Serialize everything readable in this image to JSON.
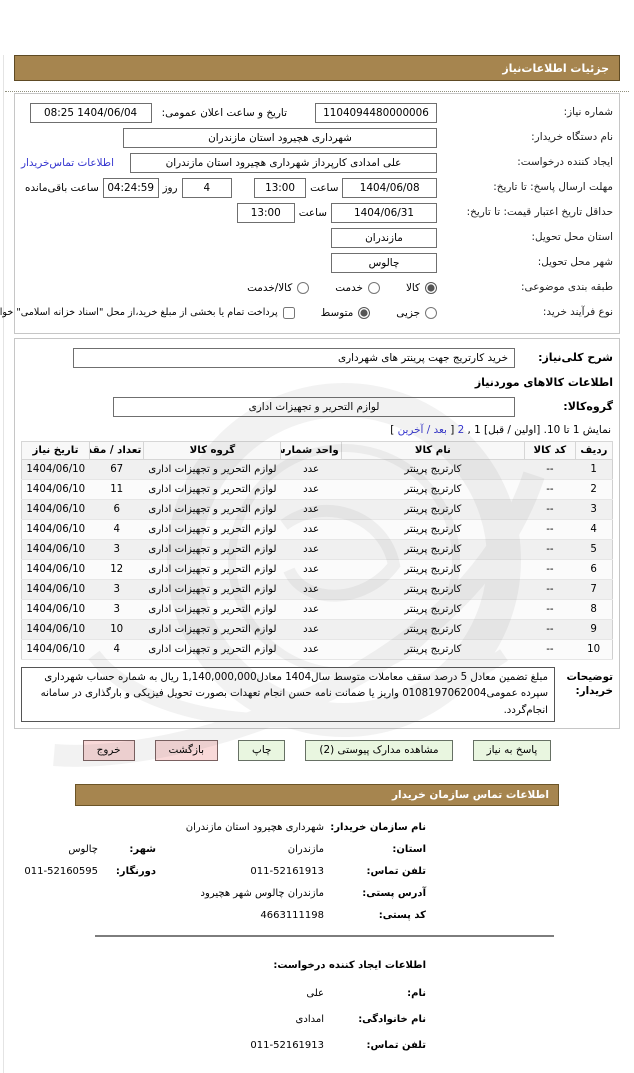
{
  "page": {
    "header_title": "جزئیات اطلاعات‌نیاز"
  },
  "accent_colors": {
    "bar_brown": "#a6854f",
    "button_green": "#e9f6e0",
    "button_pink": "#f9d9d9",
    "link_blue": "#3535cf"
  },
  "form": {
    "need_number_label": "شماره نیاز:",
    "need_number": "1104094480000006",
    "publish_datetime_label": "تاریخ و ساعت اعلان عمومی:",
    "publish_datetime": "1404/06/04 08:25",
    "buyer_org_label": "نام دستگاه خریدار:",
    "buyer_org": "شهرداری هچیرود استان مازندران",
    "creator_label": "ایجاد کننده درخواست:",
    "creator": "علی امدادی کارپرداز شهرداری هچیرود استان مازندران",
    "buyer_contact_link": "اطلاعات تماس‌خریدار",
    "reply_deadline_label": "مهلت ارسال پاسخ: تا تاریخ:",
    "reply_deadline_date": "1404/06/08",
    "hour_label": "ساعت",
    "reply_deadline_time": "13:00",
    "days_value": "4",
    "days_label": "روز",
    "remaining_time": "04:24:59",
    "remaining_label": "ساعت باقی‌مانده",
    "price_validity_label": "حداقل تاریخ اعتبار قیمت: تا تاریخ:",
    "price_validity_date": "1404/06/31",
    "price_validity_time": "13:00",
    "province_label": "استان محل تحویل:",
    "province": "مازندران",
    "city_label": "شهر محل تحویل:",
    "city": "چالوس",
    "subject_class": {
      "label": "طبقه بندی موضوعی:",
      "options": [
        {
          "label": "کالا",
          "checked": true
        },
        {
          "label": "خدمت",
          "checked": false
        },
        {
          "label": "کالا/خدمت",
          "checked": false
        }
      ]
    },
    "process_type": {
      "label": "نوع فرآیند خرید:",
      "options": [
        {
          "label": "جزیی",
          "checked": false
        },
        {
          "label": "متوسط",
          "checked": true
        }
      ],
      "treasury_checkbox": {
        "label": "پرداخت تمام یا بخشی از مبلغ خرید،از محل \"اسناد خزانه اسلامی\" خواهد بود.",
        "checked": false
      }
    }
  },
  "need": {
    "desc_label": "شرح کلی‌نیاز:",
    "desc": "خرید کارتریج جهت پرینتر های شهرداری",
    "items_heading": "اطلاعات کالاهای موردنیاز",
    "group_label": "گروه‌کالا:",
    "group": "لوازم التحریر و تجهیزات اداری"
  },
  "pagination": {
    "prefix": "نمایش 1 تا 10. [اولین / قبل] 1 ,",
    "page2_link": "2",
    "mid": " [",
    "next_last_link": "بعد / آخرین",
    "suffix": "]"
  },
  "items_table": {
    "headers": [
      "ردیف",
      "کد کالا",
      "نام کالا",
      "واحد شمارش",
      "گروه کالا",
      "تعداد / مقدار",
      "تاریخ نیاز"
    ],
    "rows": [
      [
        "1",
        "--",
        "کارتریج پرینتر",
        "عدد",
        "لوازم التحریر و تجهیزات اداری",
        "67",
        "1404/06/10"
      ],
      [
        "2",
        "--",
        "کارتریج پرینتر",
        "عدد",
        "لوازم التحریر و تجهیزات اداری",
        "11",
        "1404/06/10"
      ],
      [
        "3",
        "--",
        "کارتریج پرینتر",
        "عدد",
        "لوازم التحریر و تجهیزات اداری",
        "6",
        "1404/06/10"
      ],
      [
        "4",
        "--",
        "کارتریج پرینتر",
        "عدد",
        "لوازم التحریر و تجهیزات اداری",
        "4",
        "1404/06/10"
      ],
      [
        "5",
        "--",
        "کارتریج پرینتر",
        "عدد",
        "لوازم التحریر و تجهیزات اداری",
        "3",
        "1404/06/10"
      ],
      [
        "6",
        "--",
        "کارتریج پرینتر",
        "عدد",
        "لوازم التحریر و تجهیزات اداری",
        "12",
        "1404/06/10"
      ],
      [
        "7",
        "--",
        "کارتریج پرینتر",
        "عدد",
        "لوازم التحریر و تجهیزات اداری",
        "3",
        "1404/06/10"
      ],
      [
        "8",
        "--",
        "کارتریج پرینتر",
        "عدد",
        "لوازم التحریر و تجهیزات اداری",
        "3",
        "1404/06/10"
      ],
      [
        "9",
        "--",
        "کارتریج پرینتر",
        "عدد",
        "لوازم التحریر و تجهیزات اداری",
        "10",
        "1404/06/10"
      ],
      [
        "10",
        "--",
        "کارتریج پرینتر",
        "عدد",
        "لوازم التحریر و تجهیزات اداری",
        "4",
        "1404/06/10"
      ]
    ]
  },
  "buyer_note": {
    "label": "توضیحات خریدار:",
    "text": "مبلغ تضمین معادل 5 درصد سقف معاملات متوسط سال1404 معادل1,140,000,000 ریال به شماره حساب شهرداری سپرده عمومی0108197062004 واریز یا ضمانت نامه حسن انجام تعهدات بصورت تحویل فیزیکی و بارگذاری در سامانه انجام‌گردد."
  },
  "buttons": {
    "reply": "پاسخ به نیاز",
    "attachments": "مشاهده مدارک پیوستی (2)",
    "print": "چاپ",
    "back": "بازگشت",
    "exit": "خروج"
  },
  "contact": {
    "heading": "اطلاعات تماس سازمان خریدار",
    "org_label": "نام سازمان خریدار:",
    "org": "شهرداری هچیرود استان مازندران",
    "province_label": "استان:",
    "province": "مازندران",
    "city_label": "شهر:",
    "city": "چالوس",
    "phone_label": "تلفن تماس:",
    "phone": "011-52161913",
    "fax_label": "دورنگار:",
    "fax": "011-52160595",
    "address_label": "آدرس پستی:",
    "address": "مازندران چالوس شهر هچیرود",
    "postal_label": "کد پستی:",
    "postal_code": "4663111198"
  },
  "creator_info": {
    "heading": "اطلاعات ایجاد کننده درخواست:",
    "first_name_label": "نام:",
    "first_name": "علی",
    "last_name_label": "نام خانوادگی:",
    "last_name": "امدادی",
    "phone_label": "تلفن تماس:",
    "phone": "011-52161913"
  }
}
